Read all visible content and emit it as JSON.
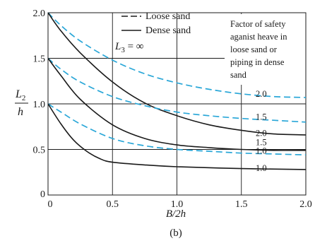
{
  "chart_data": {
    "type": "line",
    "caption": "(b)",
    "xlabel": "B/2h",
    "ylabel_num": "L",
    "ylabel_sub": "2",
    "ylabel_den": "h",
    "xlim": [
      0,
      2.0
    ],
    "ylim": [
      0,
      2.0
    ],
    "x_ticks": [
      "0",
      "0.5",
      "1.0",
      "1.5",
      "2.0"
    ],
    "x_tick_values": [
      0,
      0.5,
      1.0,
      1.5,
      2.0
    ],
    "y_ticks": [
      "0",
      "0.5",
      "1.0",
      "1.5",
      "2.0"
    ],
    "y_tick_values": [
      0,
      0.5,
      1.0,
      1.5,
      2.0
    ],
    "grid": true,
    "legend": {
      "placement": "top-center",
      "items": [
        {
          "label": "Loose sand",
          "style": "dashed",
          "color": "#2aa7d8"
        },
        {
          "label": "Dense sand",
          "style": "solid",
          "color": "#1a1a1a"
        }
      ]
    },
    "annotation_l3": "L",
    "annotation_l3_sub": "3",
    "annotation_l3_rest": " = ∞",
    "note_lines": [
      "Factor of safety",
      "aganist heave in",
      "loose sand or",
      "piping in dense",
      "sand"
    ],
    "series": [
      {
        "label": "2.0",
        "style": "dashed",
        "color": "#2aa7d8",
        "x": [
          0,
          0.1,
          0.25,
          0.5,
          0.75,
          1.0,
          1.25,
          1.5,
          1.75,
          2.0
        ],
        "y": [
          2.0,
          1.86,
          1.69,
          1.48,
          1.33,
          1.23,
          1.16,
          1.11,
          1.08,
          1.07
        ]
      },
      {
        "label": "2.0",
        "style": "solid",
        "color": "#1a1a1a",
        "x": [
          0,
          0.1,
          0.25,
          0.5,
          0.75,
          1.0,
          1.25,
          1.5,
          1.75,
          2.0
        ],
        "y": [
          2.0,
          1.8,
          1.56,
          1.24,
          1.01,
          0.87,
          0.77,
          0.71,
          0.67,
          0.66
        ]
      },
      {
        "label": "1.5",
        "style": "dashed",
        "color": "#2aa7d8",
        "x": [
          0,
          0.1,
          0.25,
          0.5,
          0.75,
          1.0,
          1.25,
          1.5,
          1.75,
          2.0
        ],
        "y": [
          1.5,
          1.38,
          1.24,
          1.08,
          0.98,
          0.91,
          0.87,
          0.84,
          0.82,
          0.8
        ]
      },
      {
        "label": "1.5",
        "style": "solid",
        "color": "#1a1a1a",
        "x": [
          0,
          0.1,
          0.25,
          0.5,
          0.75,
          1.0,
          1.25,
          1.5,
          1.75,
          2.0
        ],
        "y": [
          1.5,
          1.31,
          1.05,
          0.77,
          0.62,
          0.55,
          0.52,
          0.5,
          0.49,
          0.49
        ]
      },
      {
        "label": "1.0",
        "style": "dashed",
        "color": "#2aa7d8",
        "x": [
          0,
          0.1,
          0.25,
          0.5,
          0.75,
          1.0,
          1.25,
          1.5,
          1.75,
          2.0
        ],
        "y": [
          1.0,
          0.91,
          0.78,
          0.62,
          0.54,
          0.5,
          0.48,
          0.46,
          0.45,
          0.44
        ]
      },
      {
        "label": "1.0",
        "style": "solid",
        "color": "#1a1a1a",
        "x": [
          0,
          0.1,
          0.2,
          0.3,
          0.4,
          0.5,
          0.75,
          1.0,
          1.5,
          2.0
        ],
        "y": [
          1.0,
          0.78,
          0.6,
          0.48,
          0.4,
          0.36,
          0.33,
          0.31,
          0.29,
          0.28
        ]
      }
    ]
  }
}
